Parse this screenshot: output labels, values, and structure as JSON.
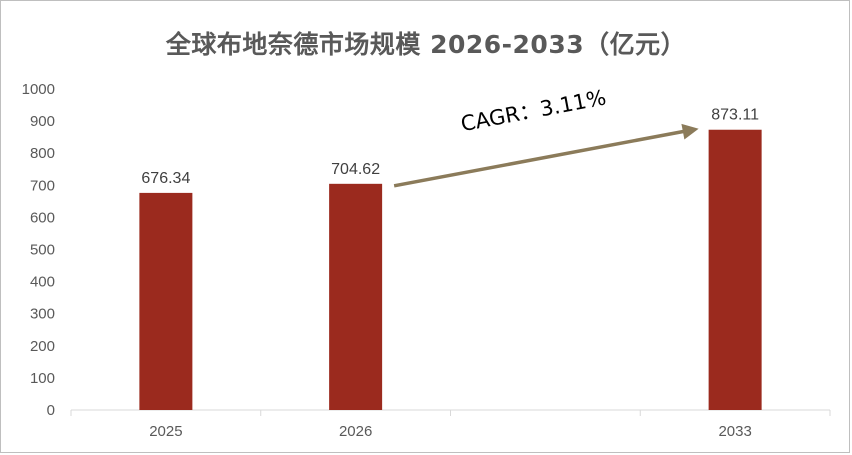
{
  "chart_data": {
    "type": "bar",
    "title": "全球布地奈德市场规模 2026-2033（亿元）",
    "categories": [
      "2025",
      "2026",
      "",
      "2033"
    ],
    "values": [
      676.34,
      704.62,
      null,
      873.11
    ],
    "data_labels": [
      "676.34",
      "704.62",
      "",
      "873.11"
    ],
    "ylim": [
      0,
      1000
    ],
    "yticks": [
      0,
      100,
      200,
      300,
      400,
      500,
      600,
      700,
      800,
      900,
      1000
    ],
    "grid": false,
    "bar_color": "#9B2A1E",
    "annotation": {
      "text": "CAGR：3.11%",
      "arrow_color": "#8B7B5A",
      "from_category": "2026",
      "to_category": "2033"
    }
  }
}
